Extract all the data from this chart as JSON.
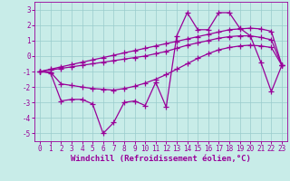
{
  "xlabel": "Windchill (Refroidissement éolien,°C)",
  "bg_color": "#c8ece8",
  "line_color": "#990099",
  "grid_color": "#99cccc",
  "x_main": [
    0,
    1,
    2,
    3,
    4,
    5,
    6,
    7,
    8,
    9,
    10,
    11,
    12,
    13,
    14,
    15,
    16,
    17,
    18,
    19,
    20,
    21,
    22,
    23
  ],
  "y_main": [
    -1.0,
    -1.1,
    -2.9,
    -2.8,
    -2.8,
    -3.1,
    -5.0,
    -4.3,
    -3.0,
    -2.9,
    -3.2,
    -1.7,
    -3.3,
    1.3,
    2.8,
    1.7,
    1.7,
    2.8,
    2.8,
    1.8,
    1.3,
    -0.4,
    -2.3,
    -0.6
  ],
  "y_line_a": [
    -1.0,
    -0.85,
    -0.7,
    -0.55,
    -0.4,
    -0.25,
    -0.1,
    0.05,
    0.2,
    0.35,
    0.5,
    0.65,
    0.8,
    0.95,
    1.1,
    1.25,
    1.4,
    1.55,
    1.7,
    1.75,
    1.8,
    1.75,
    1.6,
    -0.6
  ],
  "y_line_b": [
    -1.0,
    -0.9,
    -0.8,
    -0.7,
    -0.6,
    -0.5,
    -0.4,
    -0.3,
    -0.2,
    -0.1,
    0.0,
    0.15,
    0.3,
    0.5,
    0.7,
    0.85,
    1.0,
    1.15,
    1.25,
    1.3,
    1.3,
    1.2,
    1.05,
    -0.6
  ],
  "y_line_c": [
    -1.0,
    -1.05,
    -1.8,
    -1.9,
    -2.0,
    -2.1,
    -2.15,
    -2.2,
    -2.1,
    -1.95,
    -1.75,
    -1.5,
    -1.2,
    -0.85,
    -0.5,
    -0.15,
    0.15,
    0.4,
    0.55,
    0.65,
    0.7,
    0.65,
    0.55,
    -0.6
  ],
  "ylim": [
    -5.5,
    3.5
  ],
  "xlim": [
    -0.5,
    23.5
  ],
  "yticks": [
    -5,
    -4,
    -3,
    -2,
    -1,
    0,
    1,
    2,
    3
  ],
  "xticks": [
    0,
    1,
    2,
    3,
    4,
    5,
    6,
    7,
    8,
    9,
    10,
    11,
    12,
    13,
    14,
    15,
    16,
    17,
    18,
    19,
    20,
    21,
    22,
    23
  ],
  "marker": "+",
  "markersize": 4,
  "linewidth": 0.9,
  "tick_fontsize": 5.5,
  "xlabel_fontsize": 6.5
}
